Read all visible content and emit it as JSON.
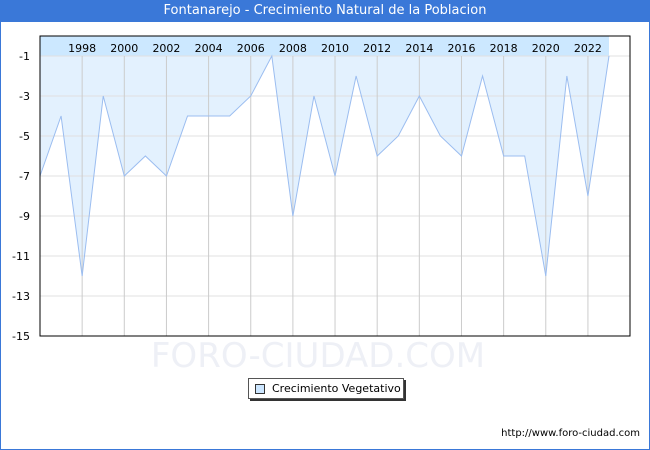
{
  "title": "Fontanarejo - Crecimiento Natural de la Poblacion",
  "watermark": "FORO-CIUDAD.COM",
  "url": "http://www.foro-ciudad.com",
  "colors": {
    "accent": "#3a78d8",
    "fill": "#e3f1fe",
    "band": "#cce8ff",
    "line": "#9bbdf0"
  },
  "chart_data": {
    "type": "area",
    "title": "Fontanarejo - Crecimiento Natural de la Poblacion",
    "x": [
      1996,
      1997,
      1998,
      1999,
      2000,
      2001,
      2002,
      2003,
      2004,
      2005,
      2006,
      2007,
      2008,
      2009,
      2010,
      2011,
      2012,
      2013,
      2014,
      2015,
      2016,
      2017,
      2018,
      2019,
      2020,
      2021,
      2022,
      2023
    ],
    "series": [
      {
        "name": "Crecimiento Vegetativo",
        "values": [
          -7,
          -4,
          -12,
          -3,
          -7,
          -6,
          -7,
          -4,
          -4,
          -4,
          -3,
          -1,
          -9,
          -3,
          -7,
          -2,
          -6,
          -5,
          -3,
          -5,
          -6,
          -2,
          -6,
          -6,
          -12,
          -2,
          -8,
          -1
        ]
      }
    ],
    "xticks": [
      "1998",
      "2000",
      "2002",
      "2004",
      "2006",
      "2008",
      "2010",
      "2012",
      "2014",
      "2016",
      "2018",
      "2020",
      "2022"
    ],
    "yticks": [
      "-1",
      "-3",
      "-5",
      "-7",
      "-9",
      "-11",
      "-13",
      "-15"
    ],
    "ylim": [
      -15,
      0
    ],
    "xlabel": "",
    "ylabel": "",
    "grid": true,
    "legend": "bottom-center"
  }
}
